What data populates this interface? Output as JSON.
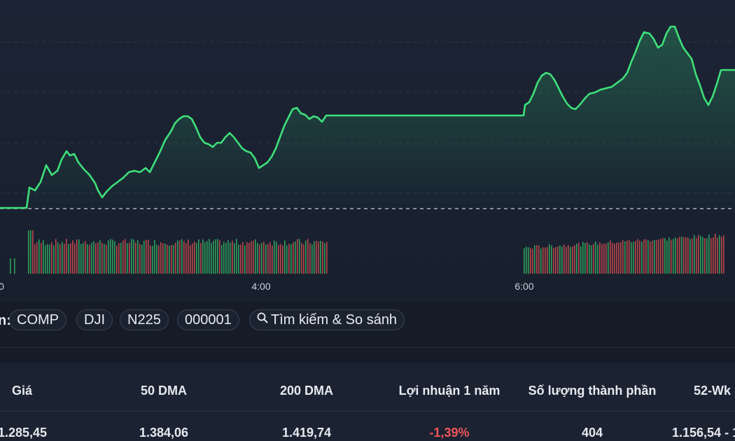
{
  "chart": {
    "time_labels": [
      "0",
      "4:00",
      "6:00"
    ],
    "line_color": "#3ee07a",
    "volume_up_color": "#2f9e5c",
    "volume_down_color": "#b8474b"
  },
  "compare": {
    "label_suffix": "n:",
    "chips": [
      "COMP",
      "DJI",
      "N225",
      "000001"
    ],
    "search_label": "Tìm kiếm & So sánh",
    "search_icon": "search-icon"
  },
  "stats": {
    "headers": [
      "Giá",
      "50 DMA",
      "200 DMA",
      "Lợi nhuận 1 năm",
      "Số lượng thành phần",
      "52-Wk"
    ],
    "values": [
      "1.285,45",
      "1.384,06",
      "1.419,74",
      "-1,39%",
      "404",
      "1.156,54 - 1"
    ]
  }
}
